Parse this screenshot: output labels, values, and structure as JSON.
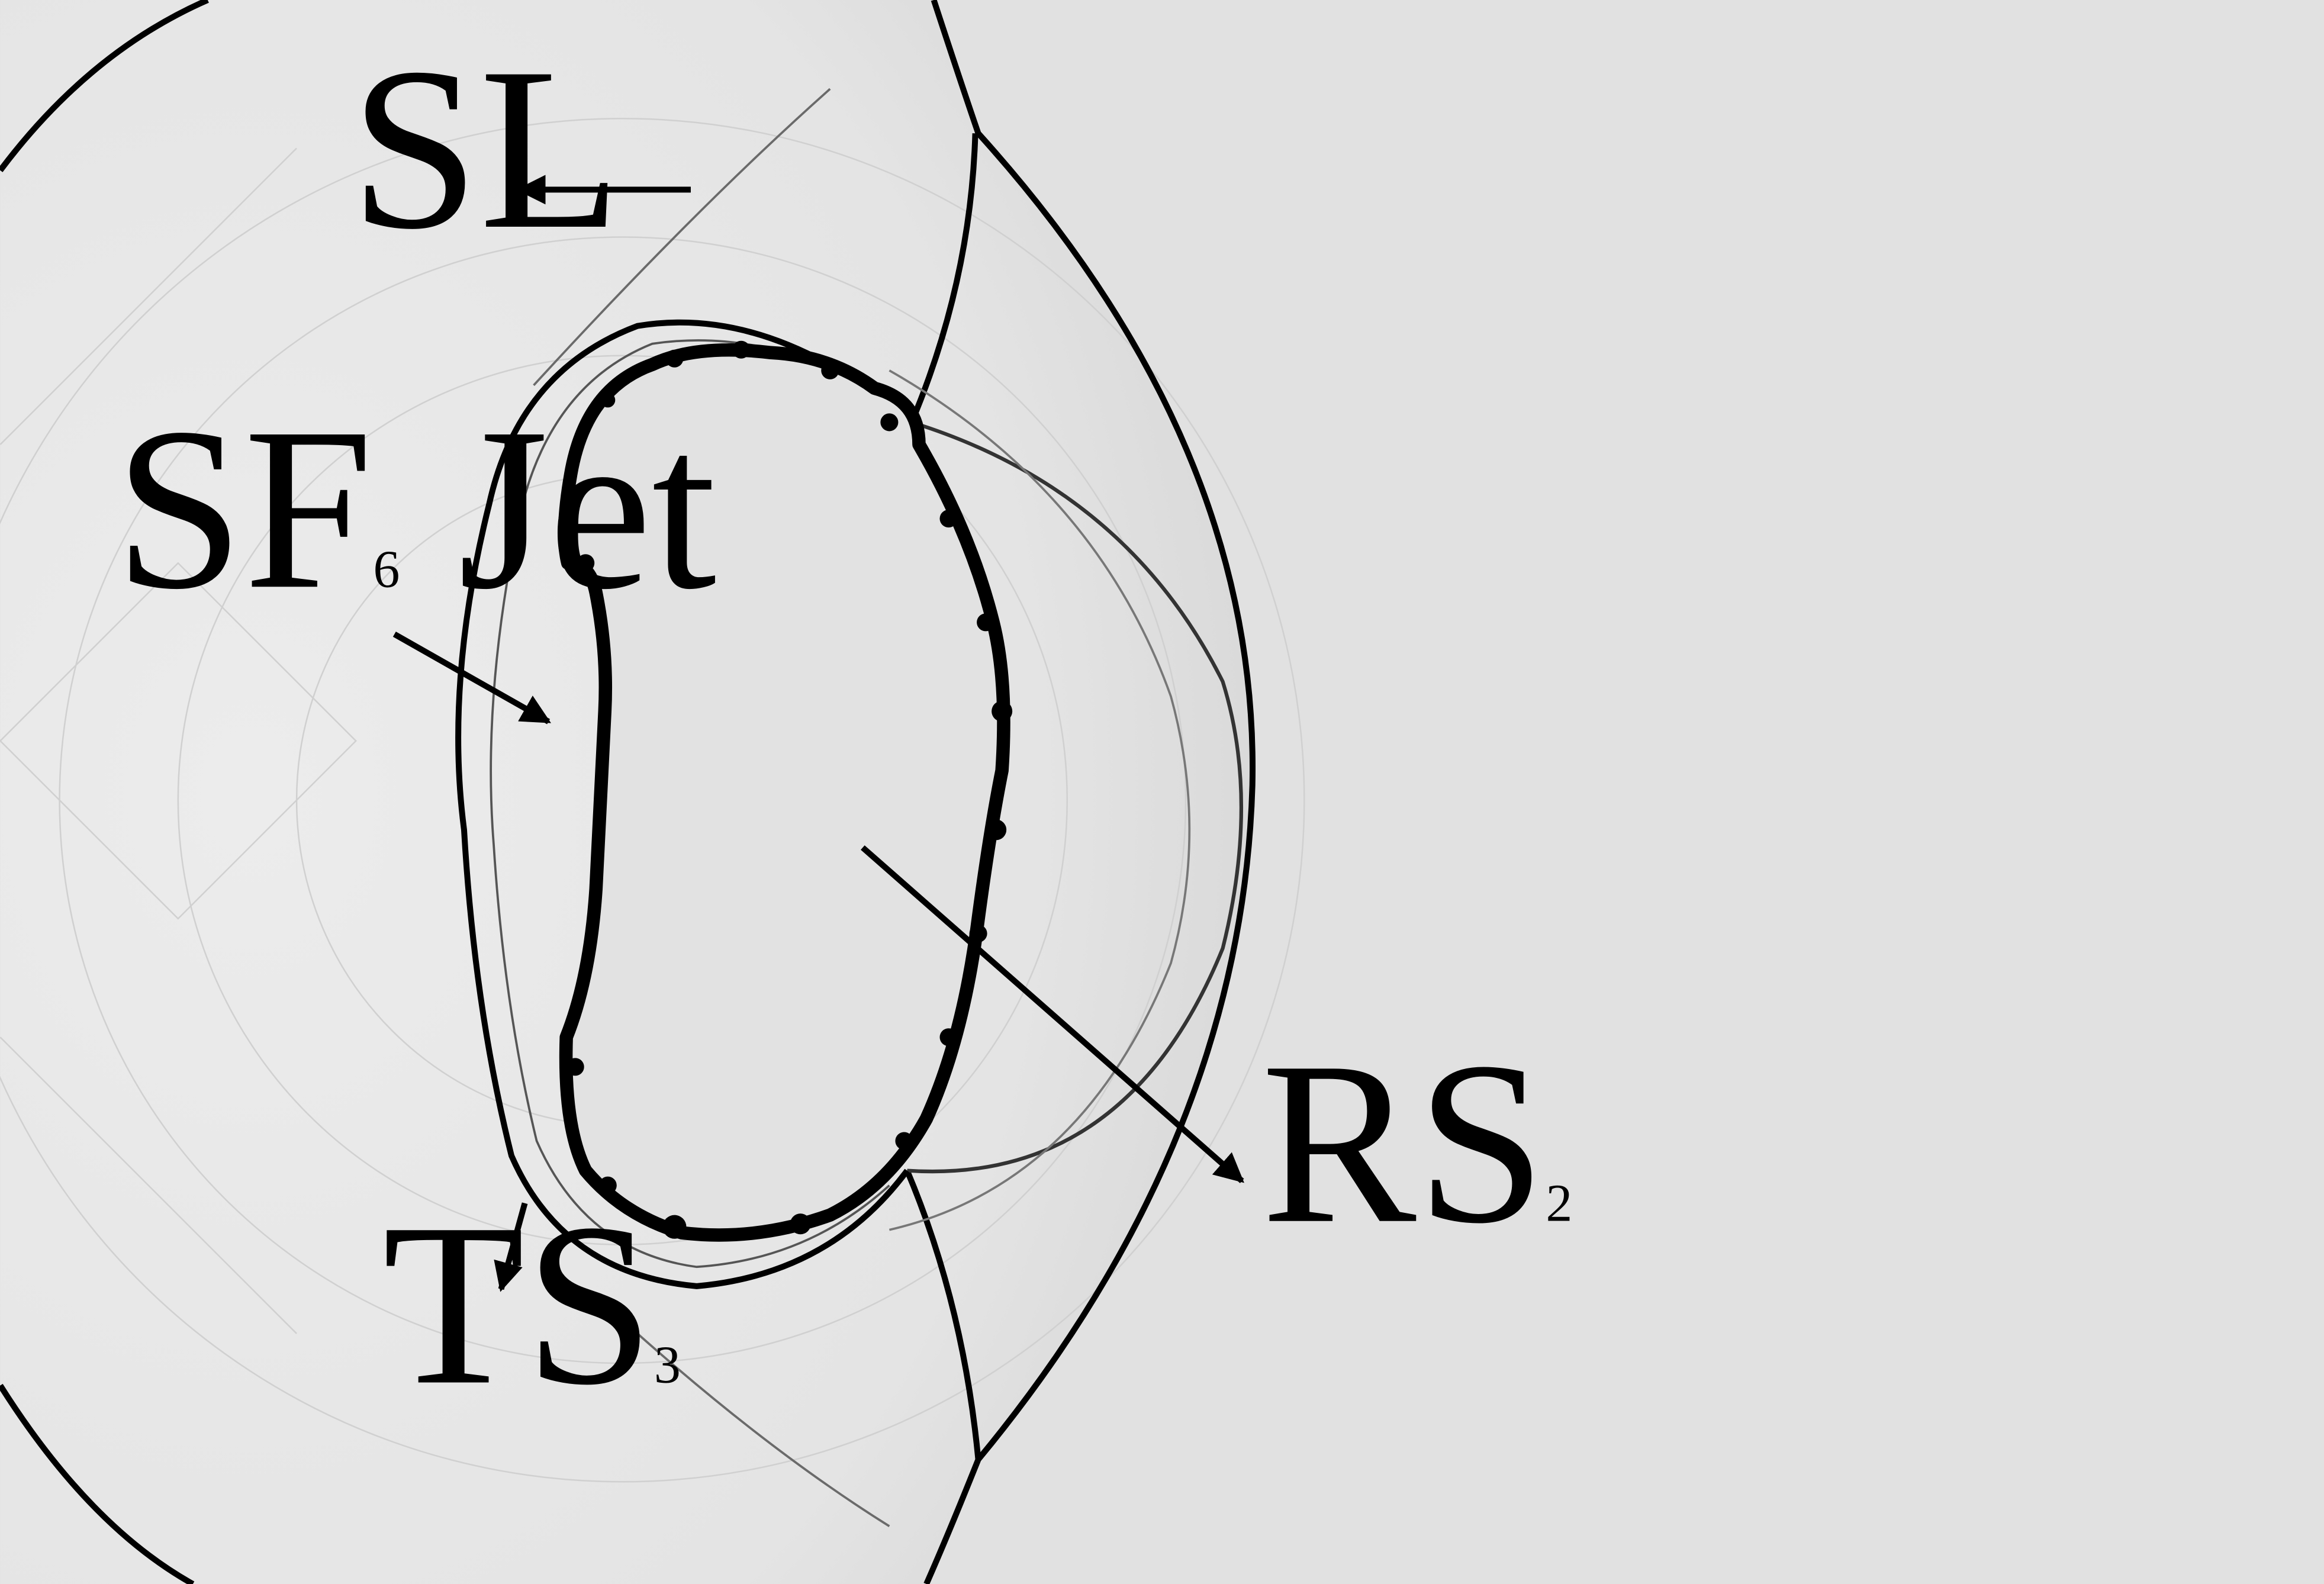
{
  "labels": {
    "sl": "SL",
    "sf6_main": "SF",
    "sf6_sub": "6",
    "sf6_rest": " Jet",
    "rs_main": "RS",
    "rs_sub": "2",
    "ts_main": "TS",
    "ts_sub": "3"
  },
  "colors": {
    "background": "#e1e1e1",
    "shocked_region": "#e8e8e8",
    "ink": "#000000"
  }
}
